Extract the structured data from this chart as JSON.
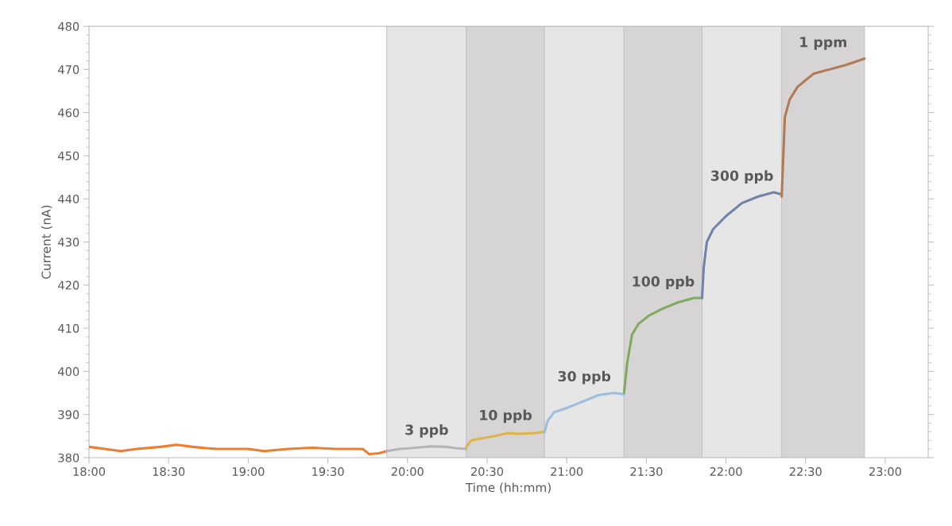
{
  "chart_data": {
    "type": "line",
    "xlabel": "Time (hh:mm)",
    "ylabel": "Current (nA)",
    "xlim": [
      18,
      23.27
    ],
    "ylim": [
      380,
      480
    ],
    "xticks": [
      {
        "value": 18,
        "label": "18:00"
      },
      {
        "value": 18.5,
        "label": "18:30"
      },
      {
        "value": 19,
        "label": "19:00"
      },
      {
        "value": 19.5,
        "label": "19:30"
      },
      {
        "value": 20,
        "label": "20:00"
      },
      {
        "value": 20.5,
        "label": "20:30"
      },
      {
        "value": 21,
        "label": "21:00"
      },
      {
        "value": 21.5,
        "label": "21:30"
      },
      {
        "value": 22,
        "label": "22:00"
      },
      {
        "value": 22.5,
        "label": "22:30"
      },
      {
        "value": 23,
        "label": "23:00"
      }
    ],
    "yticks": [
      380,
      390,
      400,
      410,
      420,
      430,
      440,
      450,
      460,
      470,
      480
    ],
    "grid": false,
    "legend": false,
    "marker": "none",
    "line_style": "solid",
    "bands": [
      {
        "axis": "x",
        "from": 19.87,
        "to": 20.37,
        "color": "#e6e6e6"
      },
      {
        "axis": "x",
        "from": 20.37,
        "to": 20.86,
        "color": "#d7d4d5"
      },
      {
        "axis": "x",
        "from": 20.86,
        "to": 21.36,
        "color": "#e6e6e6"
      },
      {
        "axis": "x",
        "from": 21.36,
        "to": 21.85,
        "color": "#d7d4d5"
      },
      {
        "axis": "x",
        "from": 21.85,
        "to": 22.35,
        "color": "#e6e6e6"
      },
      {
        "axis": "x",
        "from": 22.35,
        "to": 22.87,
        "color": "#d7d4d5"
      }
    ],
    "series": [
      {
        "color": "#ed7d31",
        "x": [
          18.0,
          18.1,
          18.2,
          18.3,
          18.45,
          18.55,
          18.65,
          18.8,
          19.0,
          19.1,
          19.25,
          19.4,
          19.55,
          19.65,
          19.72,
          19.76,
          19.82,
          19.87
        ],
        "values": [
          382.5,
          382,
          381.5,
          382,
          382.5,
          383,
          382.5,
          382,
          382,
          381.5,
          382,
          382.3,
          382,
          382,
          382,
          380.8,
          381,
          381.5
        ]
      },
      {
        "color": "#b4b4b4",
        "x": [
          19.87,
          19.95,
          20.05,
          20.15,
          20.25,
          20.3,
          20.37
        ],
        "values": [
          381.5,
          382,
          382.3,
          382.6,
          382.5,
          382.2,
          382
        ]
      },
      {
        "color": "#dcb44e",
        "x": [
          20.37,
          20.4,
          20.47,
          20.55,
          20.63,
          20.7,
          20.8,
          20.86
        ],
        "values": [
          382.5,
          384,
          384.5,
          385,
          385.7,
          385.5,
          385.7,
          386
        ]
      },
      {
        "color": "#9dbedd",
        "x": [
          20.86,
          20.88,
          20.92,
          21.0,
          21.1,
          21.2,
          21.3,
          21.36
        ],
        "values": [
          385.8,
          388.5,
          390.5,
          391.5,
          393,
          394.5,
          395,
          394.7
        ]
      },
      {
        "color": "#80ab5e",
        "x": [
          21.36,
          21.38,
          21.41,
          21.45,
          21.52,
          21.6,
          21.7,
          21.8,
          21.85
        ],
        "values": [
          395,
          402,
          408.5,
          411,
          413,
          414.5,
          416,
          417,
          417
        ]
      },
      {
        "color": "#7183a8",
        "x": [
          21.85,
          21.86,
          21.88,
          21.92,
          22.0,
          22.1,
          22.2,
          22.3,
          22.35
        ],
        "values": [
          417,
          424,
          430,
          433,
          436,
          439,
          440.5,
          441.5,
          441
        ]
      },
      {
        "color": "#b07a55",
        "x": [
          22.35,
          22.36,
          22.37,
          22.4,
          22.45,
          22.55,
          22.65,
          22.75,
          22.87
        ],
        "values": [
          440.5,
          450,
          459,
          463,
          466,
          469,
          470,
          471,
          472.5
        ]
      }
    ],
    "annotations": [
      "3 ppb",
      "10 ppb",
      "30 ppb",
      "100 ppb",
      "300 ppb",
      "1 ppm"
    ]
  }
}
